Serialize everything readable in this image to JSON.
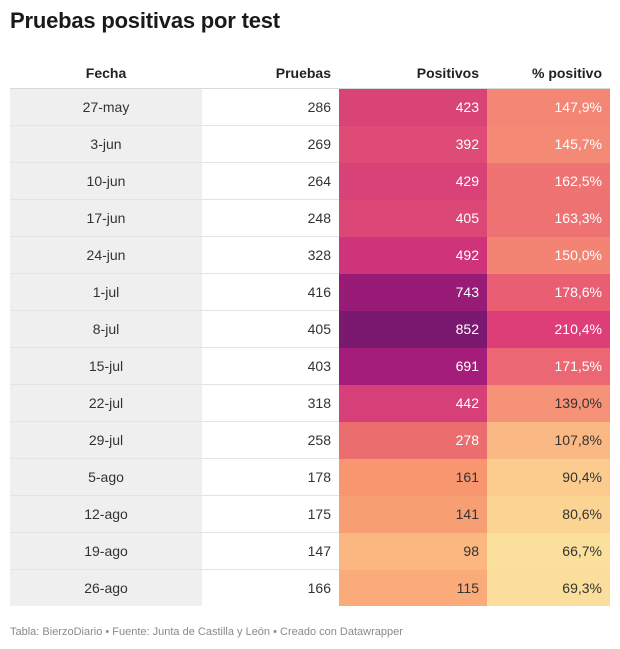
{
  "title": "Pruebas positivas por test",
  "footer": "Tabla: BierzoDiario • Fuente: Junta de Castilla y León • Creado con Datawrapper",
  "chart_data": {
    "type": "table",
    "title": "Pruebas positivas por test",
    "columns": [
      "Fecha",
      "Pruebas",
      "Positivos",
      "% positivo"
    ],
    "rows": [
      {
        "fecha": "27-may",
        "pruebas": "286",
        "positivos": "423",
        "pct": "147,9%",
        "positivos_val": 423,
        "pct_val": 147.9
      },
      {
        "fecha": "3-jun",
        "pruebas": "269",
        "positivos": "392",
        "pct": "145,7%",
        "positivos_val": 392,
        "pct_val": 145.7
      },
      {
        "fecha": "10-jun",
        "pruebas": "264",
        "positivos": "429",
        "pct": "162,5%",
        "positivos_val": 429,
        "pct_val": 162.5
      },
      {
        "fecha": "17-jun",
        "pruebas": "248",
        "positivos": "405",
        "pct": "163,3%",
        "positivos_val": 405,
        "pct_val": 163.3
      },
      {
        "fecha": "24-jun",
        "pruebas": "328",
        "positivos": "492",
        "pct": "150,0%",
        "positivos_val": 492,
        "pct_val": 150.0
      },
      {
        "fecha": "1-jul",
        "pruebas": "416",
        "positivos": "743",
        "pct": "178,6%",
        "positivos_val": 743,
        "pct_val": 178.6
      },
      {
        "fecha": "8-jul",
        "pruebas": "405",
        "positivos": "852",
        "pct": "210,4%",
        "positivos_val": 852,
        "pct_val": 210.4
      },
      {
        "fecha": "15-jul",
        "pruebas": "403",
        "positivos": "691",
        "pct": "171,5%",
        "positivos_val": 691,
        "pct_val": 171.5
      },
      {
        "fecha": "22-jul",
        "pruebas": "318",
        "positivos": "442",
        "pct": "139,0%",
        "positivos_val": 442,
        "pct_val": 139.0
      },
      {
        "fecha": "29-jul",
        "pruebas": "258",
        "positivos": "278",
        "pct": "107,8%",
        "positivos_val": 278,
        "pct_val": 107.8
      },
      {
        "fecha": "5-ago",
        "pruebas": "178",
        "positivos": "161",
        "pct": "90,4%",
        "positivos_val": 161,
        "pct_val": 90.4
      },
      {
        "fecha": "12-ago",
        "pruebas": "175",
        "positivos": "141",
        "pct": "80,6%",
        "positivos_val": 141,
        "pct_val": 80.6
      },
      {
        "fecha": "19-ago",
        "pruebas": "147",
        "positivos": "98",
        "pct": "66,7%",
        "positivos_val": 98,
        "pct_val": 66.7
      },
      {
        "fecha": "26-ago",
        "pruebas": "166",
        "positivos": "115",
        "pct": "69,3%",
        "positivos_val": 115,
        "pct_val": 69.3
      }
    ]
  },
  "colors": {
    "positivos_scale": [
      "#fbb77f",
      "#f7946e",
      "#ec6f6e",
      "#dd4a76",
      "#c92a7c",
      "#a51d7a",
      "#7b1870"
    ],
    "pct_scale": [
      "#fbe09d",
      "#fbc88a",
      "#f8a57c",
      "#f28073",
      "#e95a74",
      "#de3e77"
    ],
    "date_column_bg": "#efefef"
  }
}
